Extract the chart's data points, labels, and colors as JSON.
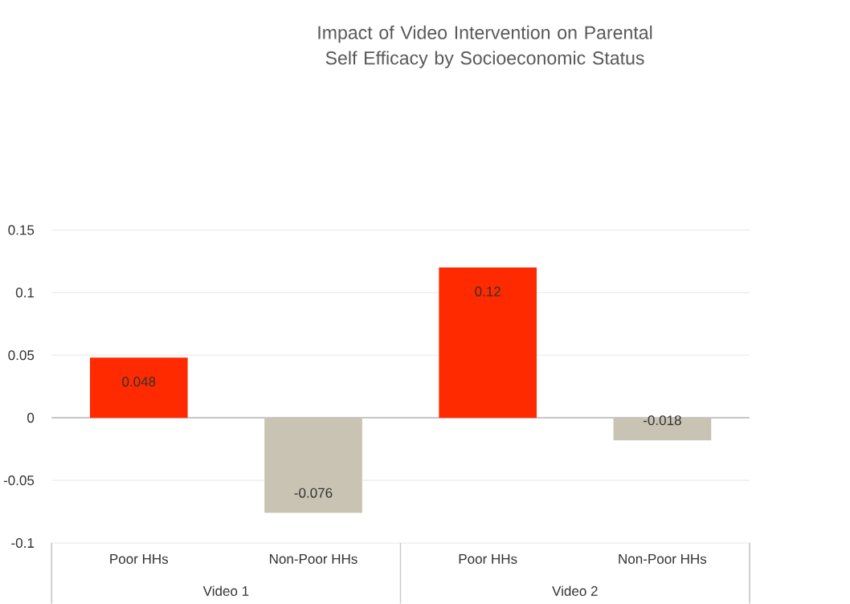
{
  "chart_data": {
    "type": "bar",
    "title": "Impact of Video Intervention on Parental Self Efficacy by Socioeconomic Status",
    "categories": [
      "Poor HHs",
      "Non-Poor HHs",
      "Poor HHs",
      "Non-Poor HHs"
    ],
    "values": [
      0.048,
      -0.076,
      0.12,
      -0.018
    ],
    "colors": [
      "#ff2a00",
      "#c9c3b3",
      "#ff2a00",
      "#c9c3b3"
    ],
    "ylim": [
      -0.1,
      0.15
    ],
    "yticks": [
      -0.1,
      -0.05,
      0,
      0.05,
      0.1,
      0.15
    ],
    "grid": "y",
    "data_labels": true,
    "annotations": [
      "Video 1",
      "Video 2"
    ]
  }
}
